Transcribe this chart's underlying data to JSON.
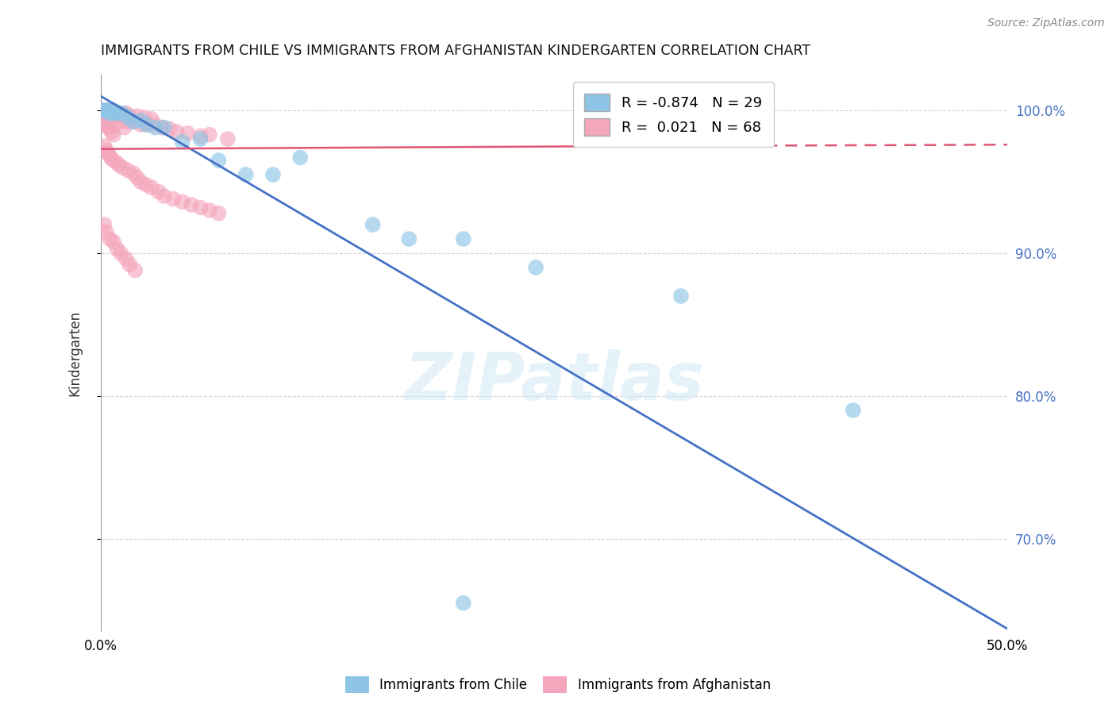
{
  "title": "IMMIGRANTS FROM CHILE VS IMMIGRANTS FROM AFGHANISTAN KINDERGARTEN CORRELATION CHART",
  "source": "Source: ZipAtlas.com",
  "ylabel": "Kindergarten",
  "xlim": [
    0.0,
    0.5
  ],
  "ylim": [
    0.635,
    1.025
  ],
  "xticks": [
    0.0,
    0.1,
    0.2,
    0.3,
    0.4,
    0.5
  ],
  "xtick_labels": [
    "0.0%",
    "",
    "",
    "",
    "",
    "50.0%"
  ],
  "ytick_labels_right": [
    "100.0%",
    "90.0%",
    "80.0%",
    "70.0%"
  ],
  "yticks_right": [
    1.0,
    0.9,
    0.8,
    0.7
  ],
  "legend_chile_R": "-0.874",
  "legend_chile_N": "29",
  "legend_afg_R": "0.021",
  "legend_afg_N": "68",
  "chile_color": "#8ec5e6",
  "afg_color": "#f4a6bc",
  "chile_line_color": "#4472c4",
  "afg_line_color": "#e05575",
  "watermark": "ZIPatlas",
  "background_color": "#ffffff",
  "grid_color": "#c8c8c8",
  "chile_line_x0": 0.0,
  "chile_line_y0": 1.01,
  "chile_line_x1": 0.5,
  "chile_line_y1": 0.637,
  "afg_line_x0": 0.0,
  "afg_line_y0": 0.973,
  "afg_line_x1_solid": 0.29,
  "afg_line_y1_solid": 0.975,
  "afg_line_x1_dash": 0.5,
  "afg_line_y1_dash": 0.976,
  "chile_scatter_x": [
    0.001,
    0.002,
    0.003,
    0.004,
    0.005,
    0.006,
    0.007,
    0.008,
    0.01,
    0.012,
    0.015,
    0.018,
    0.022,
    0.025,
    0.03,
    0.035,
    0.045,
    0.055,
    0.065,
    0.08,
    0.095,
    0.11,
    0.15,
    0.17,
    0.2,
    0.24,
    0.32,
    0.415,
    0.2
  ],
  "chile_scatter_y": [
    1.0,
    1.0,
    1.0,
    1.0,
    0.998,
    0.998,
    1.0,
    0.998,
    0.998,
    0.998,
    0.995,
    0.992,
    0.993,
    0.99,
    0.988,
    0.988,
    0.978,
    0.98,
    0.965,
    0.955,
    0.955,
    0.967,
    0.92,
    0.91,
    0.91,
    0.89,
    0.87,
    0.79,
    0.655
  ],
  "afg_scatter_x": [
    0.001,
    0.001,
    0.002,
    0.002,
    0.003,
    0.003,
    0.004,
    0.004,
    0.005,
    0.005,
    0.006,
    0.006,
    0.007,
    0.007,
    0.008,
    0.009,
    0.01,
    0.011,
    0.012,
    0.013,
    0.014,
    0.015,
    0.016,
    0.018,
    0.02,
    0.022,
    0.024,
    0.026,
    0.028,
    0.03,
    0.034,
    0.038,
    0.042,
    0.048,
    0.055,
    0.06,
    0.07,
    0.002,
    0.003,
    0.004,
    0.005,
    0.006,
    0.008,
    0.01,
    0.012,
    0.015,
    0.018,
    0.02,
    0.022,
    0.025,
    0.028,
    0.032,
    0.035,
    0.04,
    0.045,
    0.05,
    0.055,
    0.06,
    0.065,
    0.002,
    0.003,
    0.005,
    0.007,
    0.009,
    0.011,
    0.014,
    0.016,
    0.019
  ],
  "afg_scatter_y": [
    1.0,
    0.993,
    1.0,
    0.99,
    1.0,
    0.992,
    0.998,
    0.988,
    1.0,
    0.988,
    0.997,
    0.985,
    0.997,
    0.983,
    0.996,
    0.996,
    0.998,
    0.992,
    0.998,
    0.988,
    0.998,
    0.992,
    0.996,
    0.992,
    0.996,
    0.99,
    0.995,
    0.99,
    0.994,
    0.99,
    0.988,
    0.987,
    0.985,
    0.984,
    0.982,
    0.983,
    0.98,
    0.975,
    0.972,
    0.97,
    0.968,
    0.966,
    0.964,
    0.962,
    0.96,
    0.958,
    0.956,
    0.953,
    0.95,
    0.948,
    0.946,
    0.943,
    0.94,
    0.938,
    0.936,
    0.934,
    0.932,
    0.93,
    0.928,
    0.92,
    0.915,
    0.91,
    0.908,
    0.903,
    0.9,
    0.896,
    0.892,
    0.888
  ]
}
